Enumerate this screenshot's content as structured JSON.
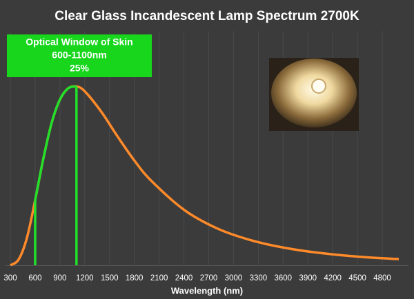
{
  "chart_data": {
    "type": "line",
    "title": "Clear Glass Incandescent Lamp Spectrum 2700K",
    "x_label": "Wavelength (nm)",
    "annotation": [
      "Optical Window of Skin",
      "600-1100nm",
      "25%"
    ],
    "x": [
      300,
      400,
      500,
      600,
      700,
      800,
      900,
      1000,
      1100,
      1200,
      1400,
      1600,
      1800,
      2000,
      2400,
      2800,
      3200,
      3600,
      4000,
      4500,
      5000
    ],
    "series": [
      {
        "color": "#ff8a2a",
        "values": [
          0,
          3.2,
          15.2,
          36.3,
          59.7,
          79.5,
          92.5,
          98.8,
          99.8,
          97.1,
          85.7,
          71.7,
          58.5,
          47.4,
          31.0,
          20.6,
          14.1,
          9.9,
          7.1,
          4.8,
          3.4
        ]
      },
      {
        "color": "#22e02a",
        "values": [
          null,
          null,
          null,
          36.3,
          59.7,
          79.5,
          92.5,
          98.8,
          99.8,
          null,
          null,
          null,
          null,
          null,
          null,
          null,
          null,
          null,
          null,
          null,
          null
        ]
      }
    ],
    "window_lines": [
      3,
      8
    ],
    "xlim": [
      300,
      5000
    ],
    "xticks": [
      300,
      600,
      900,
      1200,
      1500,
      1800,
      2100,
      2400,
      2700,
      3000,
      3300,
      3600,
      3900,
      4200,
      4500,
      4800
    ],
    "ylim": [
      0,
      100
    ],
    "grid": true
  }
}
